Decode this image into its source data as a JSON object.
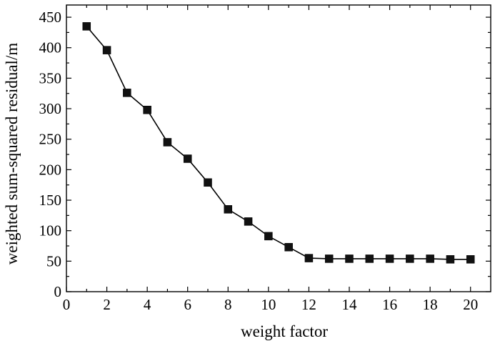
{
  "chart_data": {
    "type": "line",
    "xlabel": "weight factor",
    "ylabel": "weighted sum-squared residual/m",
    "xlim": [
      0,
      21
    ],
    "ylim": [
      0,
      470
    ],
    "xticks": [
      0,
      2,
      4,
      6,
      8,
      10,
      12,
      14,
      16,
      18,
      20
    ],
    "yticks": [
      0,
      50,
      100,
      150,
      200,
      250,
      300,
      350,
      400,
      450
    ],
    "x": [
      1,
      2,
      3,
      4,
      5,
      6,
      7,
      8,
      9,
      10,
      11,
      12,
      13,
      14,
      15,
      16,
      17,
      18,
      19,
      20
    ],
    "series": [
      {
        "values": [
          435,
          396,
          326,
          298,
          245,
          218,
          179,
          135,
          115,
          91,
          73,
          55,
          54,
          54,
          54,
          54,
          54,
          54,
          53,
          53
        ],
        "marker": "square",
        "color": "#000000"
      }
    ],
    "grid": false,
    "legend": null
  }
}
